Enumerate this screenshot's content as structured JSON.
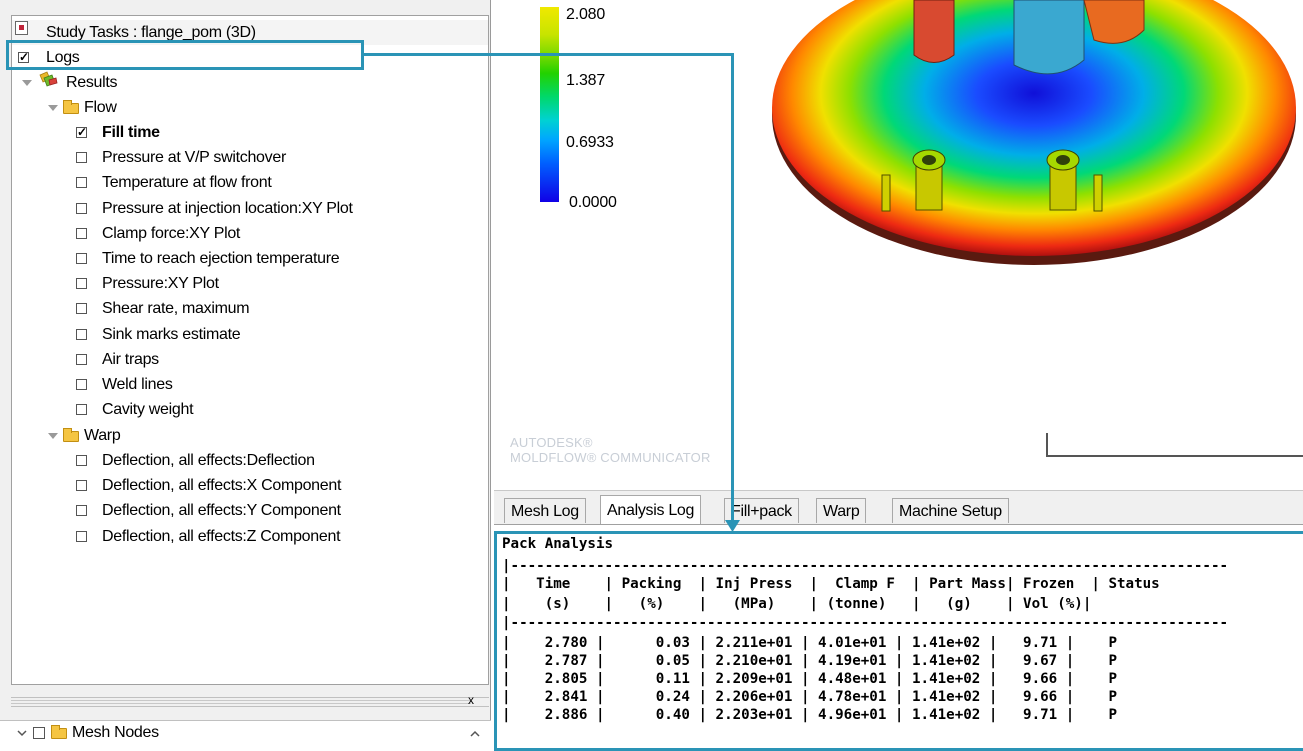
{
  "tree": {
    "study_title": "Study Tasks : flange_pom (3D)",
    "logs_label": "Logs",
    "results_label": "Results",
    "flow_label": "Flow",
    "flow_items": [
      {
        "label": "Fill time",
        "checked": true
      },
      {
        "label": "Pressure at V/P switchover",
        "checked": false
      },
      {
        "label": "Temperature at flow front",
        "checked": false
      },
      {
        "label": "Pressure at injection location:XY Plot",
        "checked": false
      },
      {
        "label": "Clamp force:XY Plot",
        "checked": false
      },
      {
        "label": "Time to reach ejection temperature",
        "checked": false
      },
      {
        "label": "Pressure:XY Plot",
        "checked": false
      },
      {
        "label": "Shear rate, maximum",
        "checked": false
      },
      {
        "label": "Sink marks estimate",
        "checked": false
      },
      {
        "label": "Air traps",
        "checked": false
      },
      {
        "label": "Weld lines",
        "checked": false
      },
      {
        "label": "Cavity weight",
        "checked": false
      }
    ],
    "warp_label": "Warp",
    "warp_items": [
      {
        "label": "Deflection, all effects:Deflection",
        "checked": false
      },
      {
        "label": "Deflection, all effects:X Component",
        "checked": false
      },
      {
        "label": "Deflection, all effects:Y Component",
        "checked": false
      },
      {
        "label": "Deflection, all effects:Z Component",
        "checked": false
      }
    ]
  },
  "bottom_panel": {
    "close_glyph": "x",
    "mesh_nodes_label": "Mesh Nodes"
  },
  "viewport": {
    "scale_labels": [
      "2.080",
      "1.387",
      "0.6933",
      "0.0000"
    ],
    "watermark_line1": "AUTODESK®",
    "watermark_line2": "MOLDFLOW® COMMUNICATOR"
  },
  "tabs": [
    "Mesh Log",
    "Analysis Log",
    "Fill+pack",
    "Warp",
    "Machine Setup"
  ],
  "active_tab": "Analysis Log",
  "log": {
    "title": "Pack Analysis",
    "separator": "|------------------------------------------------------------------------------------",
    "header_line1": "|   Time    | Packing  | Inj Press  |  Clamp F  | Part Mass| Frozen  | Status",
    "header_line2": "|    (s)    |   (%)    |   (MPa)    | (tonne)   |   (g)    | Vol (%)|",
    "rows": [
      "|    2.780 |      0.03 | 2.211e+01 | 4.01e+01 | 1.41e+02 |   9.71 |    P",
      "|    2.787 |      0.05 | 2.210e+01 | 4.19e+01 | 1.41e+02 |   9.67 |    P",
      "|    2.805 |      0.11 | 2.209e+01 | 4.48e+01 | 1.41e+02 |   9.66 |    P",
      "|    2.841 |      0.24 | 2.206e+01 | 4.78e+01 | 1.41e+02 |   9.66 |    P",
      "|    2.886 |      0.40 | 2.203e+01 | 4.96e+01 | 1.41e+02 |   9.71 |    P"
    ]
  },
  "colors": {
    "callout": "#2a94b6",
    "folder": "#f5c542"
  }
}
